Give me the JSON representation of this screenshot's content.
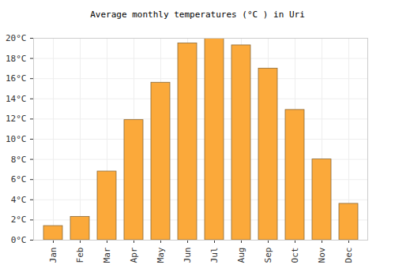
{
  "chart_data": {
    "type": "bar",
    "title": "Average monthly temperatures (°C ) in Uri",
    "categories": [
      "Jan",
      "Feb",
      "Mar",
      "Apr",
      "May",
      "Jun",
      "Jul",
      "Aug",
      "Sep",
      "Oct",
      "Nov",
      "Dec"
    ],
    "values": [
      1.4,
      2.3,
      6.8,
      11.9,
      15.6,
      19.5,
      20.0,
      19.3,
      17.0,
      12.9,
      8.0,
      3.6
    ],
    "color": "#fba93a",
    "ylim": [
      0,
      20
    ],
    "yticks": [
      {
        "value": 0,
        "label": "0°C"
      },
      {
        "value": 2,
        "label": "2°C"
      },
      {
        "value": 4,
        "label": "4°C"
      },
      {
        "value": 6,
        "label": "6°C"
      },
      {
        "value": 8,
        "label": "8°C"
      },
      {
        "value": 10,
        "label": "10°C"
      },
      {
        "value": 12,
        "label": "12°C"
      },
      {
        "value": 14,
        "label": "14°C"
      },
      {
        "value": 16,
        "label": "16°C"
      },
      {
        "value": 18,
        "label": "18°C"
      },
      {
        "value": 20,
        "label": "20°C"
      }
    ],
    "grid": true
  }
}
